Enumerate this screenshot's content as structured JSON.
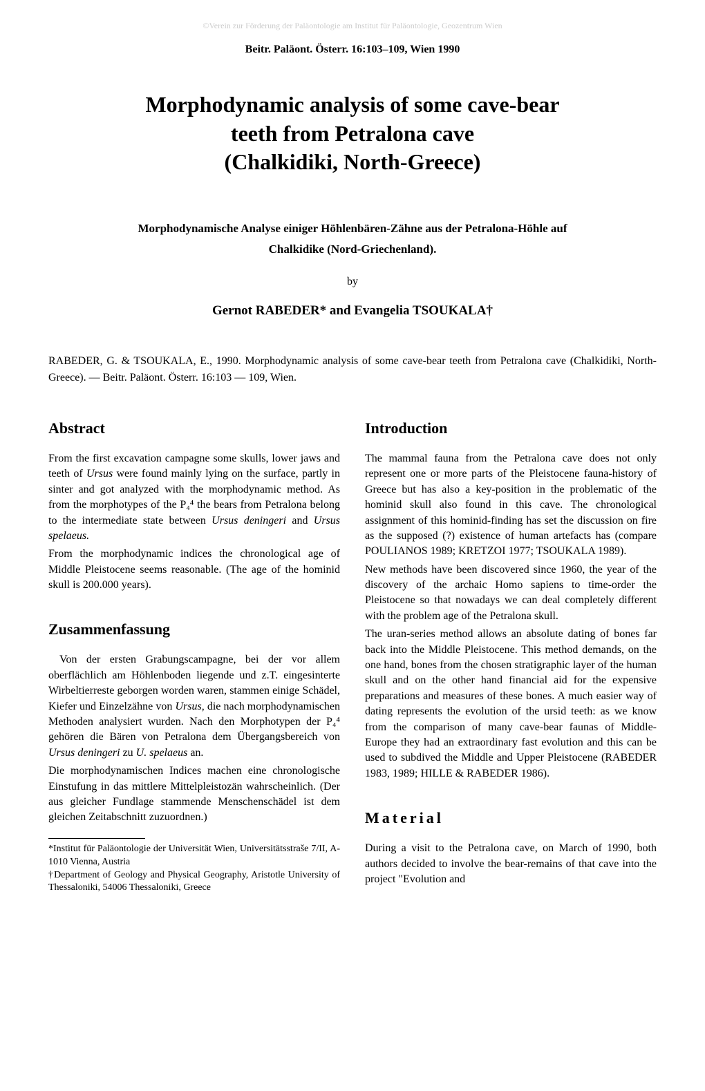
{
  "watermark": "©Verein zur Förderung der Paläontologie am Institut für Paläontologie, Geozentrum Wien",
  "journal": "Beitr. Paläont. Österr. 16:103–109, Wien 1990",
  "title_line1": "Morphodynamic analysis of some cave-bear",
  "title_line2": "teeth from Petralona cave",
  "title_line3": "(Chalkidiki, North-Greece)",
  "subtitle_line1": "Morphodynamische Analyse einiger Höhlenbären-Zähne aus der Petralona-Höhle auf",
  "subtitle_line2": "Chalkidike (Nord-Griechenland).",
  "by": "by",
  "authors_html": "Gernot RABEDER* and Evangelia TSOUKALA†",
  "citation": "RABEDER, G. & TSOUKALA, E., 1990. Morphodynamic analysis of some cave-bear teeth from Petralona cave (Chalkidiki, North-Greece). — Beitr. Paläont. Österr. 16:103 — 109, Wien.",
  "left": {
    "abstract_heading": "Abstract",
    "abstract_p1_a": "From the first excavation campagne some skulls, lower jaws and teeth of ",
    "abstract_p1_ursus": "Ursus",
    "abstract_p1_b": " were found mainly lying on the surface, partly in sinter and got analyzed with the morphodynamic method. As from the morphotypes of the P₄⁴ the bears from Petralona belong to the intermediate state between ",
    "abstract_p1_den": "Ursus deningeri",
    "abstract_p1_c": " and ",
    "abstract_p1_spe": "Ursus spelaeus.",
    "abstract_p2": "From the morphodynamic indices the chronological age of Middle Pleistocene seems reasonable. (The age of the hominid skull is 200.000 years).",
    "zusammen_heading": "Zusammenfassung",
    "zusammen_p1_a": "Von der ersten Grabungscampagne, bei der vor allem oberflächlich am Höhlenboden liegende und z.T. eingesinterte Wirbeltierreste geborgen worden waren, stammen einige Schädel, Kiefer und Einzelzähne von ",
    "zusammen_p1_ursus": "Ursus,",
    "zusammen_p1_b": " die nach morphodynamischen Methoden analysiert wurden. Nach den Morphotypen der P₄⁴ gehören die Bären von Petralona dem Übergangsbereich von ",
    "zusammen_p1_den": "Ursus deningeri",
    "zusammen_p1_c": " zu ",
    "zusammen_p1_spe": "U. spelaeus",
    "zusammen_p1_d": " an.",
    "zusammen_p2": "Die morphodynamischen Indices machen eine chronologische Einstufung in das mittlere Mittelpleistozän wahrscheinlich. (Der aus gleicher Fundlage stammende Menschenschädel ist dem gleichen Zeitabschnitt zuzuordnen.)",
    "footnote1": "*Institut für Paläontologie der Universität Wien, Universitätsstraše 7/II, A-1010 Vienna, Austria",
    "footnote2": "†Department of Geology and Physical Geography, Aristotle University of Thessaloniki, 54006 Thessaloniki, Greece"
  },
  "right": {
    "intro_heading": "Introduction",
    "intro_p1": "The mammal fauna from the Petralona cave does not only represent one or more parts of the Pleistocene fauna-history of Greece but has also a key-position in the problematic of the hominid skull also found in this cave. The chronological assignment of this hominid-finding has set the discussion on fire as the supposed (?) existence of human artefacts has (compare POULIANOS 1989; KRETZOI 1977; TSOUKALA 1989).",
    "intro_p2": "New methods have been discovered since 1960, the year of the discovery of the archaic Homo sapiens to time-order the Pleistocene so that nowadays we can deal completely different with the problem age of the Petralona skull.",
    "intro_p3": "The uran-series method allows an absolute dating of bones far back into the Middle Pleistocene. This method demands, on the one hand, bones from the chosen stratigraphic layer of the human skull and on the other hand financial aid for the expensive preparations and measures of these bones. A much easier way of dating represents the evolution of the ursid teeth: as we know from the comparison of many cave-bear faunas of Middle- Europe they had an extraordinary fast evolution and this can be used to subdived the Middle and Upper Pleistocene (RABEDER 1983, 1989; HILLE & RABEDER 1986).",
    "material_heading": "Material",
    "material_p1": "During a visit to the Petralona cave, on March of 1990, both authors decided to involve the bear-remains of that cave into the project \"Evolution and"
  }
}
